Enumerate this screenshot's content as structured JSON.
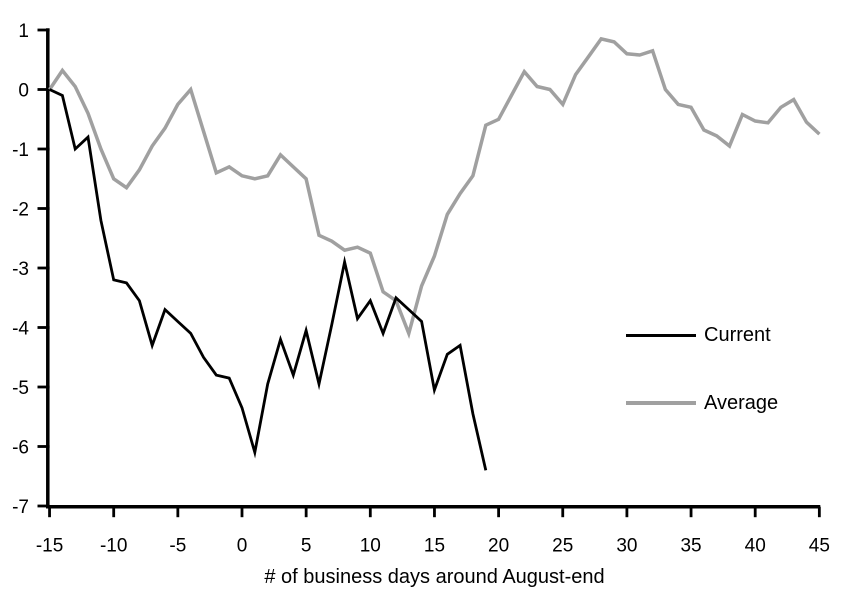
{
  "styles": {
    "background": "#ffffff",
    "axis_color": "#000000",
    "text_color": "#000000"
  },
  "chart_data": {
    "type": "line",
    "title": "",
    "xlabel": "# of business days around August-end",
    "ylabel": "",
    "xlim": [
      -15,
      45
    ],
    "ylim": [
      -7,
      1
    ],
    "x_ticks": [
      -15,
      -10,
      -5,
      0,
      5,
      10,
      15,
      20,
      25,
      30,
      35,
      40,
      45
    ],
    "y_ticks": [
      1,
      0,
      -1,
      -2,
      -3,
      -4,
      -5,
      -6,
      -7
    ],
    "grid": false,
    "legend_position": "right-middle",
    "series": [
      {
        "name": "Current",
        "color": "#000000",
        "stroke_width": 2.8,
        "x": [
          -15,
          -14,
          -13,
          -12,
          -11,
          -10,
          -9,
          -8,
          -7,
          -6,
          -5,
          -4,
          -3,
          -2,
          -1,
          0,
          1,
          2,
          3,
          4,
          5,
          6,
          7,
          8,
          9,
          10,
          11,
          12,
          13,
          14,
          15,
          16,
          17,
          18,
          19
        ],
        "values": [
          0,
          -0.1,
          -1.0,
          -0.8,
          -2.2,
          -3.2,
          -3.25,
          -3.55,
          -4.3,
          -3.7,
          -3.9,
          -4.1,
          -4.5,
          -4.8,
          -4.85,
          -5.35,
          -6.1,
          -4.95,
          -4.2,
          -4.8,
          -4.05,
          -4.95,
          -3.95,
          -2.9,
          -3.85,
          -3.55,
          -4.1,
          -3.5,
          -3.7,
          -3.9,
          -5.05,
          -4.45,
          -4.3,
          -5.45,
          -6.4
        ]
      },
      {
        "name": "Average",
        "color": "#a0a0a0",
        "stroke_width": 3.5,
        "x": [
          -15,
          -14,
          -13,
          -12,
          -11,
          -10,
          -9,
          -8,
          -7,
          -6,
          -5,
          -4,
          -3,
          -2,
          -1,
          0,
          1,
          2,
          3,
          4,
          5,
          6,
          7,
          8,
          9,
          10,
          11,
          12,
          13,
          14,
          15,
          16,
          17,
          18,
          19,
          20,
          21,
          22,
          23,
          24,
          25,
          26,
          27,
          28,
          29,
          30,
          31,
          32,
          33,
          34,
          35,
          36,
          37,
          38,
          39,
          40,
          41,
          42,
          43,
          44,
          45
        ],
        "values": [
          0,
          0.32,
          0.05,
          -0.4,
          -1.0,
          -1.5,
          -1.65,
          -1.35,
          -0.95,
          -0.65,
          -0.25,
          0,
          -0.7,
          -1.4,
          -1.3,
          -1.45,
          -1.5,
          -1.45,
          -1.1,
          -1.3,
          -1.5,
          -2.45,
          -2.55,
          -2.7,
          -2.65,
          -2.75,
          -3.4,
          -3.55,
          -4.1,
          -3.3,
          -2.8,
          -2.1,
          -1.75,
          -1.45,
          -0.6,
          -0.5,
          -0.1,
          0.3,
          0.05,
          0,
          -0.25,
          0.25,
          0.55,
          0.85,
          0.8,
          0.6,
          0.58,
          0.65,
          0,
          -0.25,
          -0.3,
          -0.68,
          -0.78,
          -0.95,
          -0.42,
          -0.53,
          -0.56,
          -0.3,
          -0.17,
          -0.55,
          -0.75
        ]
      }
    ]
  }
}
